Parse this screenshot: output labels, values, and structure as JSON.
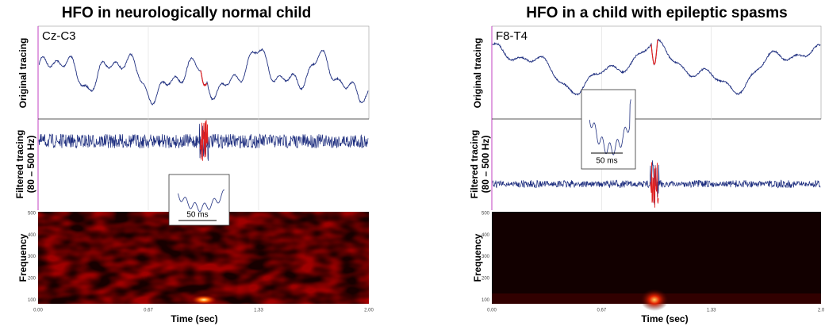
{
  "panels": [
    {
      "title": "HFO in neurologically normal child",
      "channel": "Cz-C3",
      "original_label": "Original tracing",
      "filtered_label": [
        "Filtered tracing",
        "(80 – 500 Hz)"
      ],
      "frequency_label": "Frequency",
      "inset_scale": "50 ms",
      "frequency_ticks": [
        "500",
        "400",
        "300",
        "200",
        "100"
      ],
      "time_ticks": [
        "0.00",
        "0.67",
        "1.33",
        "2.00"
      ],
      "x_label": "Time (sec)"
    },
    {
      "title": "HFO in a child with epileptic spasms",
      "channel": "F8-T4",
      "original_label": "Original tracing",
      "filtered_label": [
        "Filtered tracing",
        "(80 – 500 Hz)"
      ],
      "frequency_label": "Frequency",
      "inset_scale": "50 ms",
      "frequency_ticks": [
        "500",
        "400",
        "300",
        "200",
        "100"
      ],
      "time_ticks": [
        "0.00",
        "0.67",
        "1.33",
        "2.0"
      ],
      "x_label": "Time (sec)"
    }
  ]
}
